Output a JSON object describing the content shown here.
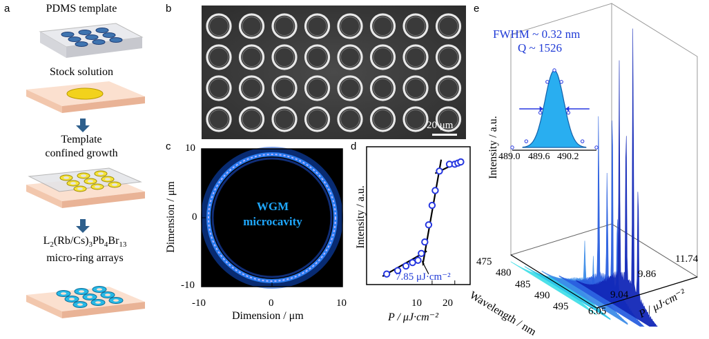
{
  "panels": {
    "a": {
      "label": "a",
      "steps": {
        "pdms": "PDMS template",
        "stock": "Stock solution",
        "template_line1": "Template",
        "template_line2": "confined growth",
        "product_formula_pre": "L",
        "product_formula_sub1": "2",
        "product_formula_mid": "(Rb/Cs)",
        "product_formula_sub2": "3",
        "product_formula_mid2": "Pb",
        "product_formula_sub3": "4",
        "product_formula_mid3": "Br",
        "product_formula_sub4": "13",
        "product_line2": "micro-ring arrays"
      }
    },
    "b": {
      "label": "b",
      "scalebar": "20 μm"
    },
    "c": {
      "label": "c",
      "text_line1": "WGM",
      "text_line2": "microcavity",
      "xlabel": "Dimension / μm",
      "ylabel": "Dimension / μm",
      "xticks": [
        "-10",
        "0",
        "10"
      ],
      "yticks": [
        "10",
        "0",
        "-10"
      ]
    },
    "d": {
      "label": "d",
      "annotation": "7.85 μJ·cm⁻²",
      "xlabel": "P / μJ·cm⁻²",
      "ylabel": "Intensity / a.u.",
      "xticks": [
        "10",
        "20"
      ]
    },
    "e": {
      "label": "e",
      "inset_text1": "FWHM ~ 0.32 nm",
      "inset_text2": "Q ~ 1526",
      "inset_xticks": [
        "489.0",
        "489.6",
        "490.2"
      ],
      "ylabel": "Intensity / a.u.",
      "xlabel": "Wavelength / nm",
      "xticks": [
        "475",
        "480",
        "485",
        "490",
        "495"
      ],
      "zlabel": "P / μJ·cm⁻²",
      "zticks": [
        "6.05",
        "9.04",
        "9.86",
        "11.74"
      ]
    }
  },
  "chart_data": [
    {
      "type": "scatter",
      "panel": "d",
      "xlabel": "P / μJ·cm⁻²",
      "ylabel": "Intensity / a.u.",
      "xscale": "log",
      "threshold": 7.85,
      "x": [
        2.5,
        3.5,
        4.5,
        5.5,
        6.5,
        7.2,
        8.0,
        9.0,
        10.0,
        11.0,
        12.5,
        17.0,
        20.0,
        22.0,
        24.0
      ],
      "y": [
        0.02,
        0.05,
        0.09,
        0.12,
        0.14,
        0.2,
        0.3,
        0.45,
        0.62,
        0.75,
        0.92,
        0.98,
        0.98,
        0.99,
        1.0
      ]
    },
    {
      "type": "line",
      "panel": "e-inset",
      "x": [
        489.0,
        489.2,
        489.4,
        489.5,
        489.6,
        489.7,
        489.8,
        490.0,
        490.2
      ],
      "y": [
        0.0,
        0.08,
        0.45,
        0.85,
        1.0,
        0.85,
        0.45,
        0.08,
        0.0
      ],
      "fwhm_nm": 0.32,
      "q": 1526
    }
  ],
  "colors": {
    "blue_text": "#1f3ad6",
    "ring_outer": "#1a6bd8",
    "ring_text": "#1fa8ff",
    "spectrum_front": "#22d3e6",
    "spectrum_back": "#0b1fb0"
  }
}
